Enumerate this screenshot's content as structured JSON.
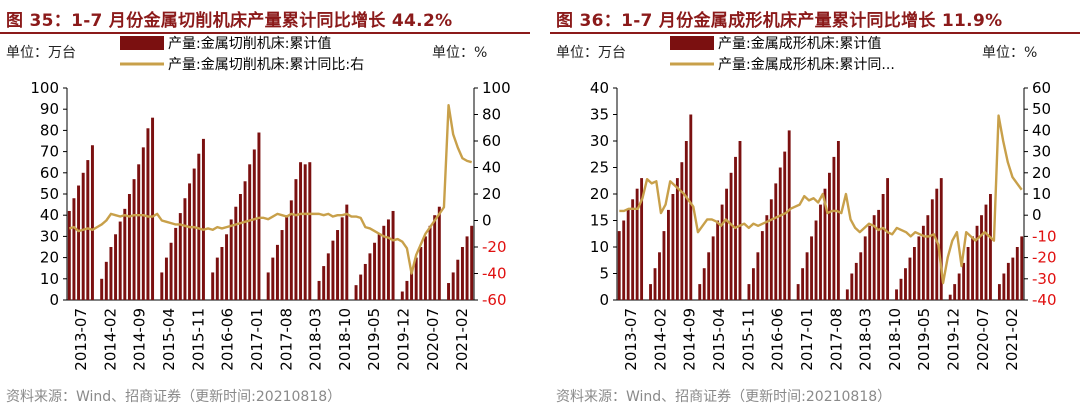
{
  "colors": {
    "bar": "#7B1010",
    "line": "#C8A04A",
    "title": "#8B1A1A",
    "negative_tick": "#E01010",
    "source": "#8a8a8a"
  },
  "panels": [
    {
      "title": "图 35：1-7 月份金属切削机床产量累计同比增长 44.2%",
      "unit_left": "单位：万台",
      "unit_right": "单位：%",
      "source": "资料来源：Wind、招商证券（更新时间:20210818）"
    },
    {
      "title": "图 36：1-7 月份金属成形机床产量累计同比增长 11.9%",
      "unit_left": "单位：万台",
      "unit_right": "单位：%",
      "source": "资料来源：Wind、招商证券（更新时间:20210818）"
    }
  ],
  "chart_data": [
    {
      "type": "bar",
      "x_labels": [
        "2013-07",
        "2014-02",
        "2014-09",
        "2015-04",
        "2015-11",
        "2016-06",
        "2017-01",
        "2017-08",
        "2018-03",
        "2018-10",
        "2019-05",
        "2019-12",
        "2020-07",
        "2021-02"
      ],
      "series": [
        {
          "name": "产量:金属切削机床:累计值",
          "type": "bar",
          "axis": "left",
          "values": [
            42,
            48,
            54,
            60,
            66,
            73,
            null,
            10,
            18,
            25,
            31,
            37,
            43,
            50,
            57,
            64,
            72,
            81,
            86,
            null,
            13,
            20,
            27,
            34,
            41,
            48,
            55,
            62,
            69,
            76,
            null,
            13,
            20,
            25,
            31,
            38,
            44,
            50,
            56,
            64,
            71,
            79,
            null,
            13,
            20,
            26,
            33,
            40,
            47,
            57,
            65,
            64,
            65,
            null,
            9,
            16,
            22,
            28,
            33,
            39,
            45,
            null,
            7,
            12,
            17,
            22,
            27,
            31,
            35,
            38,
            42,
            null,
            4,
            9,
            14,
            20,
            25,
            30,
            35,
            40,
            44,
            null,
            8,
            13,
            19,
            25,
            30,
            35
          ]
        },
        {
          "name": "产量:金属切削机床:累计同比:右",
          "type": "line",
          "axis": "right",
          "values": [
            -6,
            -5,
            -8,
            -7,
            -6,
            -7,
            -5,
            -3,
            0,
            5,
            4,
            3,
            4,
            3,
            4,
            4,
            4,
            3,
            3,
            5,
            0,
            -1,
            -2,
            -3,
            -3,
            -4,
            -5,
            -5,
            -6,
            -7,
            -6,
            -7,
            -5,
            -6,
            -5,
            -4,
            -3,
            -2,
            -1,
            0,
            1,
            2,
            2,
            1,
            3,
            5,
            4,
            3,
            5,
            4,
            5,
            5,
            5,
            5,
            5,
            4,
            5,
            3,
            4,
            4,
            5,
            3,
            3,
            2,
            -5,
            -6,
            -8,
            -10,
            -12,
            -13,
            -15,
            -14,
            -16,
            -21,
            -40,
            -26,
            -18,
            -10,
            -5,
            0,
            5,
            10,
            87,
            65,
            55,
            47,
            45,
            44
          ]
        }
      ],
      "y_left": {
        "min": 0,
        "max": 100,
        "step": 10
      },
      "y_right": {
        "min": -60,
        "max": 100,
        "step": 20
      }
    },
    {
      "type": "bar",
      "x_labels": [
        "2013-07",
        "2014-02",
        "2014-09",
        "2015-04",
        "2015-11",
        "2016-06",
        "2017-01",
        "2017-08",
        "2018-03",
        "2018-10",
        "2019-05",
        "2019-12",
        "2020-07",
        "2021-02"
      ],
      "series": [
        {
          "name": "产量:金属成形机床:累计值",
          "type": "bar",
          "axis": "left",
          "values": [
            13,
            15,
            17,
            19,
            21,
            23,
            null,
            3,
            6,
            9,
            13,
            17,
            20,
            23,
            26,
            30,
            35,
            null,
            3,
            6,
            9,
            12,
            15,
            18,
            21,
            24,
            27,
            30,
            null,
            3,
            6,
            9,
            13,
            16,
            19,
            22,
            25,
            28,
            32,
            null,
            3,
            6,
            9,
            12,
            15,
            18,
            21,
            24,
            27,
            30,
            null,
            2,
            5,
            7,
            9,
            12,
            14,
            16,
            17,
            20,
            23,
            null,
            2,
            4,
            6,
            8,
            10,
            12,
            14,
            16,
            19,
            21,
            23,
            null,
            1,
            3,
            5,
            7,
            10,
            12,
            14,
            16,
            18,
            20,
            null,
            3,
            5,
            7,
            8,
            10,
            12
          ]
        },
        {
          "name": "产量:金属成形机床:累计同...",
          "type": "line",
          "axis": "right",
          "values": [
            2,
            2,
            3,
            3,
            3,
            8,
            17,
            15,
            16,
            1,
            5,
            16,
            14,
            12,
            10,
            7,
            4,
            -8,
            -5,
            -2,
            -2,
            -3,
            -5,
            -2,
            -4,
            -6,
            -5,
            -4,
            -6,
            -4,
            -5,
            -4,
            -3,
            -2,
            -1,
            0,
            1,
            3,
            4,
            5,
            9,
            7,
            8,
            6,
            10,
            1,
            2,
            2,
            1,
            10,
            -2,
            -6,
            -8,
            -6,
            -4,
            -5,
            -7,
            -6,
            -8,
            -9,
            -6,
            -7,
            -8,
            -10,
            -8,
            -9,
            -10,
            -10,
            -9,
            -14,
            -32,
            -20,
            -12,
            -8,
            -24,
            -8,
            -10,
            -12,
            -10,
            -8,
            -10,
            -12,
            47,
            35,
            25,
            18,
            15,
            12
          ]
        }
      ],
      "y_left": {
        "min": 0,
        "max": 40,
        "step": 5
      },
      "y_right": {
        "min": -40,
        "max": 60,
        "step": 10
      }
    }
  ]
}
